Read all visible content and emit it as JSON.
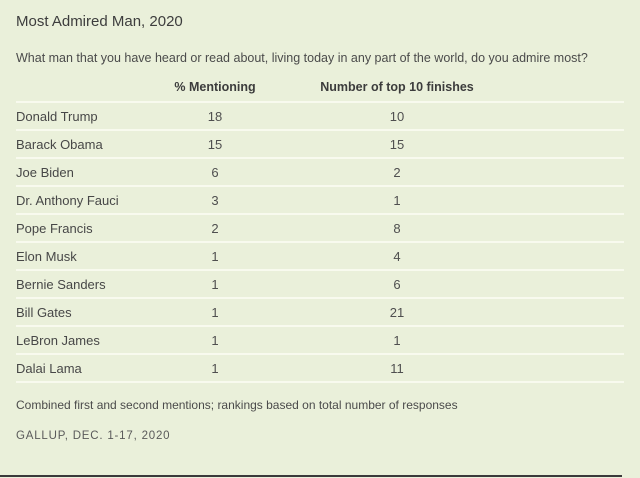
{
  "colors": {
    "background": "#eaf0da",
    "separator": "#f8faee",
    "title_text": "#3d3d3d",
    "body_text": "#4b4b4b",
    "bottom_line": "#3a3a3a"
  },
  "chart_data": {
    "type": "table",
    "title": "Most Admired Man, 2020",
    "subtitle": "What man that you have heard or read about, living today in any part of the world, do you admire most?",
    "columns": [
      "% Mentioning",
      "Number of top 10 finishes"
    ],
    "categories": [
      "Donald Trump",
      "Barack Obama",
      "Joe Biden",
      "Dr. Anthony Fauci",
      "Pope Francis",
      "Elon Musk",
      "Bernie Sanders",
      "Bill Gates",
      "LeBron James",
      "Dalai Lama"
    ],
    "series": [
      {
        "name": "% Mentioning",
        "values": [
          18,
          15,
          6,
          3,
          2,
          1,
          1,
          1,
          1,
          1
        ]
      },
      {
        "name": "Number of top 10 finishes",
        "values": [
          10,
          15,
          2,
          1,
          8,
          4,
          6,
          21,
          1,
          11
        ]
      }
    ],
    "note": "Combined first and second mentions; rankings based on total number of responses",
    "source": "GALLUP, DEC. 1-17, 2020",
    "layout": {
      "grid": "off",
      "legend": "none"
    }
  }
}
